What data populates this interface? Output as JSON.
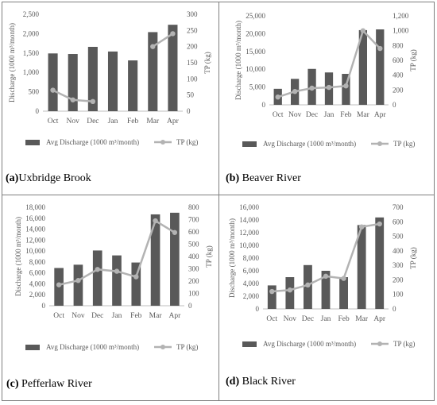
{
  "panels": [
    {
      "caption": {
        "letter": "(a)",
        "name": "Uxbridge Brook"
      },
      "chart_data": {
        "type": "bar",
        "categories": [
          "Oct",
          "Nov",
          "Dec",
          "Jan",
          "Feb",
          "Mar",
          "Apr"
        ],
        "series": [
          {
            "name": "Avg Discharge (1000 m³/month)",
            "type": "bar",
            "axis": "left",
            "values": [
              1490,
              1475,
              1660,
              1540,
              1310,
              2040,
              2230
            ]
          },
          {
            "name": "TP (kg)",
            "type": "line",
            "axis": "right",
            "values": [
              65,
              35,
              30,
              null,
              null,
              200,
              240
            ]
          }
        ],
        "ylabel": "Discharge (1000 m³/month)",
        "y2label": "TP (kg)",
        "ylim": [
          0,
          2500
        ],
        "yticks": [
          0,
          500,
          1000,
          1500,
          2000,
          2500
        ],
        "y2lim": [
          0,
          300
        ],
        "y2ticks": [
          0,
          50,
          100,
          150,
          200,
          250,
          300
        ],
        "legend": "bottom",
        "grid": false
      }
    },
    {
      "caption": {
        "letter": "(b)",
        "name": " Beaver River"
      },
      "chart_data": {
        "type": "bar",
        "categories": [
          "Oct",
          "Nov",
          "Dec",
          "Jan",
          "Feb",
          "Mar",
          "Apr"
        ],
        "series": [
          {
            "name": "Avg Discharge (1000 m³/month)",
            "type": "bar",
            "axis": "left",
            "values": [
              4500,
              7300,
              10100,
              9100,
              8700,
              21000,
              21200
            ]
          },
          {
            "name": "TP (kg)",
            "type": "line",
            "axis": "right",
            "values": [
              105,
              180,
              225,
              235,
              255,
              1000,
              760
            ]
          }
        ],
        "ylabel": "Discharge (1000 m³/month)",
        "y2label": "TP (kg)",
        "ylim": [
          0,
          25000
        ],
        "yticks": [
          0,
          5000,
          10000,
          15000,
          20000,
          25000
        ],
        "y2lim": [
          0,
          1200
        ],
        "y2ticks": [
          0,
          200,
          400,
          600,
          800,
          1000,
          1200
        ],
        "legend": "bottom",
        "grid": false
      }
    },
    {
      "caption": {
        "letter": "(c)",
        "name": " Pefferlaw River"
      },
      "chart_data": {
        "type": "bar",
        "categories": [
          "Oct",
          "Nov",
          "Dec",
          "Jan",
          "Feb",
          "Mar",
          "Apr"
        ],
        "series": [
          {
            "name": "Avg Discharge (1000 m³/month)",
            "type": "bar",
            "axis": "left",
            "values": [
              6900,
              7500,
              10100,
              9200,
              7900,
              16700,
              17000
            ]
          },
          {
            "name": "TP (kg)",
            "type": "line",
            "axis": "right",
            "values": [
              170,
              205,
              295,
              280,
              235,
              690,
              595
            ]
          }
        ],
        "ylabel": "Discharge (1000 m³/month)",
        "y2label": "TP (kg)",
        "ylim": [
          0,
          18000
        ],
        "yticks": [
          0,
          2000,
          4000,
          6000,
          8000,
          10000,
          12000,
          14000,
          16000,
          18000
        ],
        "y2lim": [
          0,
          800
        ],
        "y2ticks": [
          0,
          100,
          200,
          300,
          400,
          500,
          600,
          700,
          800
        ],
        "legend": "bottom",
        "grid": false
      }
    },
    {
      "caption": {
        "letter": "(d)",
        "name": " Black River"
      },
      "chart_data": {
        "type": "bar",
        "categories": [
          "Oct",
          "Nov",
          "Dec",
          "Jan",
          "Feb",
          "Mar",
          "Apr"
        ],
        "series": [
          {
            "name": "Avg Discharge (1000 m³/month)",
            "type": "bar",
            "axis": "left",
            "values": [
              3700,
              5000,
              6900,
              6000,
              5000,
              13200,
              14400
            ]
          },
          {
            "name": "TP (kg)",
            "type": "line",
            "axis": "right",
            "values": [
              120,
              130,
              165,
              225,
              210,
              565,
              585
            ]
          }
        ],
        "ylabel": "Discharge (1000 m³/month)",
        "y2label": "TP (kg)",
        "ylim": [
          0,
          16000
        ],
        "yticks": [
          0,
          2000,
          4000,
          6000,
          8000,
          10000,
          12000,
          14000,
          16000
        ],
        "y2lim": [
          0,
          700
        ],
        "y2ticks": [
          0,
          100,
          200,
          300,
          400,
          500,
          600,
          700
        ],
        "legend": "bottom",
        "grid": false
      }
    }
  ],
  "colors": {
    "bar": "#595959",
    "line": "#b3b3b3",
    "text": "#595959",
    "axis": "#bfbfbf"
  }
}
